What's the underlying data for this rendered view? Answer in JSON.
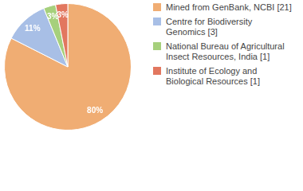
{
  "chart_data": {
    "type": "pie",
    "categories": [
      "Mined from GenBank, NCBI [21]",
      "Centre for Biodiversity Genomics [3]",
      "National Bureau of Agricultural Insect Resources, India [1]",
      "Institute of Ecology and Biological Resources [1]"
    ],
    "values": [
      80,
      11,
      3,
      3
    ],
    "colors": [
      "#f0ad73",
      "#a8bfe6",
      "#a6d07c",
      "#e2775f"
    ],
    "legend": "top-right",
    "data_labels": true,
    "value_labels": [
      "80%",
      "11%",
      "3%",
      "3%"
    ]
  }
}
